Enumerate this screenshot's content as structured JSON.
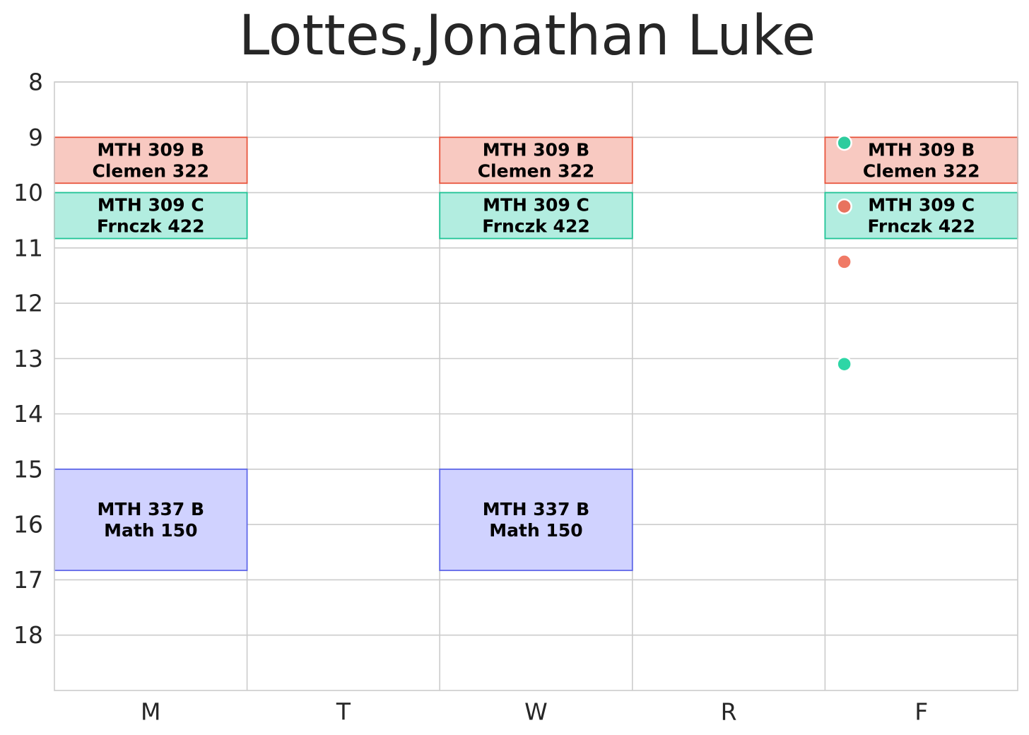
{
  "chart_data": {
    "type": "schedule",
    "title": "Lottes,Jonathan Luke",
    "days": [
      "M",
      "T",
      "W",
      "R",
      "F"
    ],
    "y_ticks": [
      8,
      9,
      10,
      11,
      12,
      13,
      14,
      15,
      16,
      17,
      18
    ],
    "ylim": [
      8,
      19
    ],
    "grid": true,
    "courses": [
      {
        "course": "MTH 309 B",
        "room": "Clemen 322",
        "days": [
          "M",
          "W",
          "F"
        ],
        "start": 9.0,
        "end": 9.83,
        "fill": "#f8c9c1",
        "edge": "#e8553d"
      },
      {
        "course": "MTH 309 C",
        "room": "Frnczk 422",
        "days": [
          "M",
          "W",
          "F"
        ],
        "start": 10.0,
        "end": 10.83,
        "fill": "#b2ede0",
        "edge": "#20c496"
      },
      {
        "course": "MTH 337 B",
        "room": "Math 150",
        "days": [
          "M",
          "W"
        ],
        "start": 15.0,
        "end": 16.83,
        "fill": "#d0d2ff",
        "edge": "#6068e8"
      }
    ],
    "markers": [
      {
        "day": "F",
        "time": 9.1,
        "color": "#2ecc9e"
      },
      {
        "day": "F",
        "time": 10.25,
        "color": "#e8735e"
      },
      {
        "day": "F",
        "time": 11.25,
        "color": "#f07a66"
      },
      {
        "day": "F",
        "time": 13.1,
        "color": "#2ed6a6"
      }
    ]
  }
}
